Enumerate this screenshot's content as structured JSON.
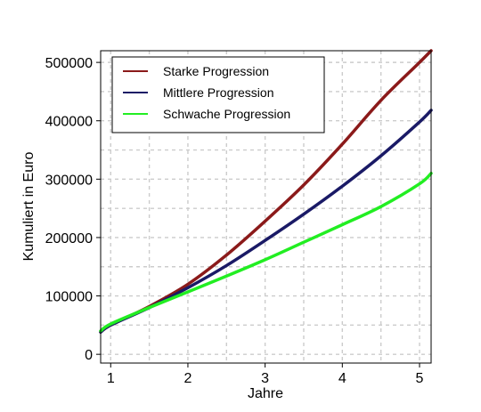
{
  "chart_data": {
    "type": "line",
    "xlabel": "Jahre",
    "ylabel": "Kumuliert in Euro",
    "xlim": [
      0.87,
      5.15
    ],
    "ylim": [
      -15000,
      520000
    ],
    "x_ticks": [
      1,
      2,
      3,
      4,
      5
    ],
    "x_tick_labels": [
      "1",
      "2",
      "3",
      "4",
      "5"
    ],
    "y_ticks": [
      0,
      100000,
      200000,
      300000,
      400000,
      500000
    ],
    "y_tick_labels": [
      "0",
      "100000",
      "200000",
      "300000",
      "400000",
      "500000"
    ],
    "grid": true,
    "legend_position": "top-left",
    "x": [
      0.87,
      1,
      1.5,
      2,
      2.5,
      3,
      3.5,
      4,
      4.5,
      5,
      5.15
    ],
    "series": [
      {
        "name": "Starke Progression",
        "color": "#8b1a1a",
        "values": [
          38000,
          50000,
          82000,
          120000,
          170000,
          228000,
          290000,
          360000,
          435000,
          500000,
          520000
        ]
      },
      {
        "name": "Mittlere Progression",
        "color": "#1a1a66",
        "values": [
          38000,
          50000,
          80000,
          114000,
          152000,
          195000,
          240000,
          288000,
          340000,
          398000,
          418000
        ]
      },
      {
        "name": "Schwache Progression",
        "color": "#22ee22",
        "values": [
          40000,
          52000,
          80000,
          107000,
          134000,
          162000,
          192000,
          222000,
          253000,
          292000,
          310000
        ]
      }
    ]
  }
}
